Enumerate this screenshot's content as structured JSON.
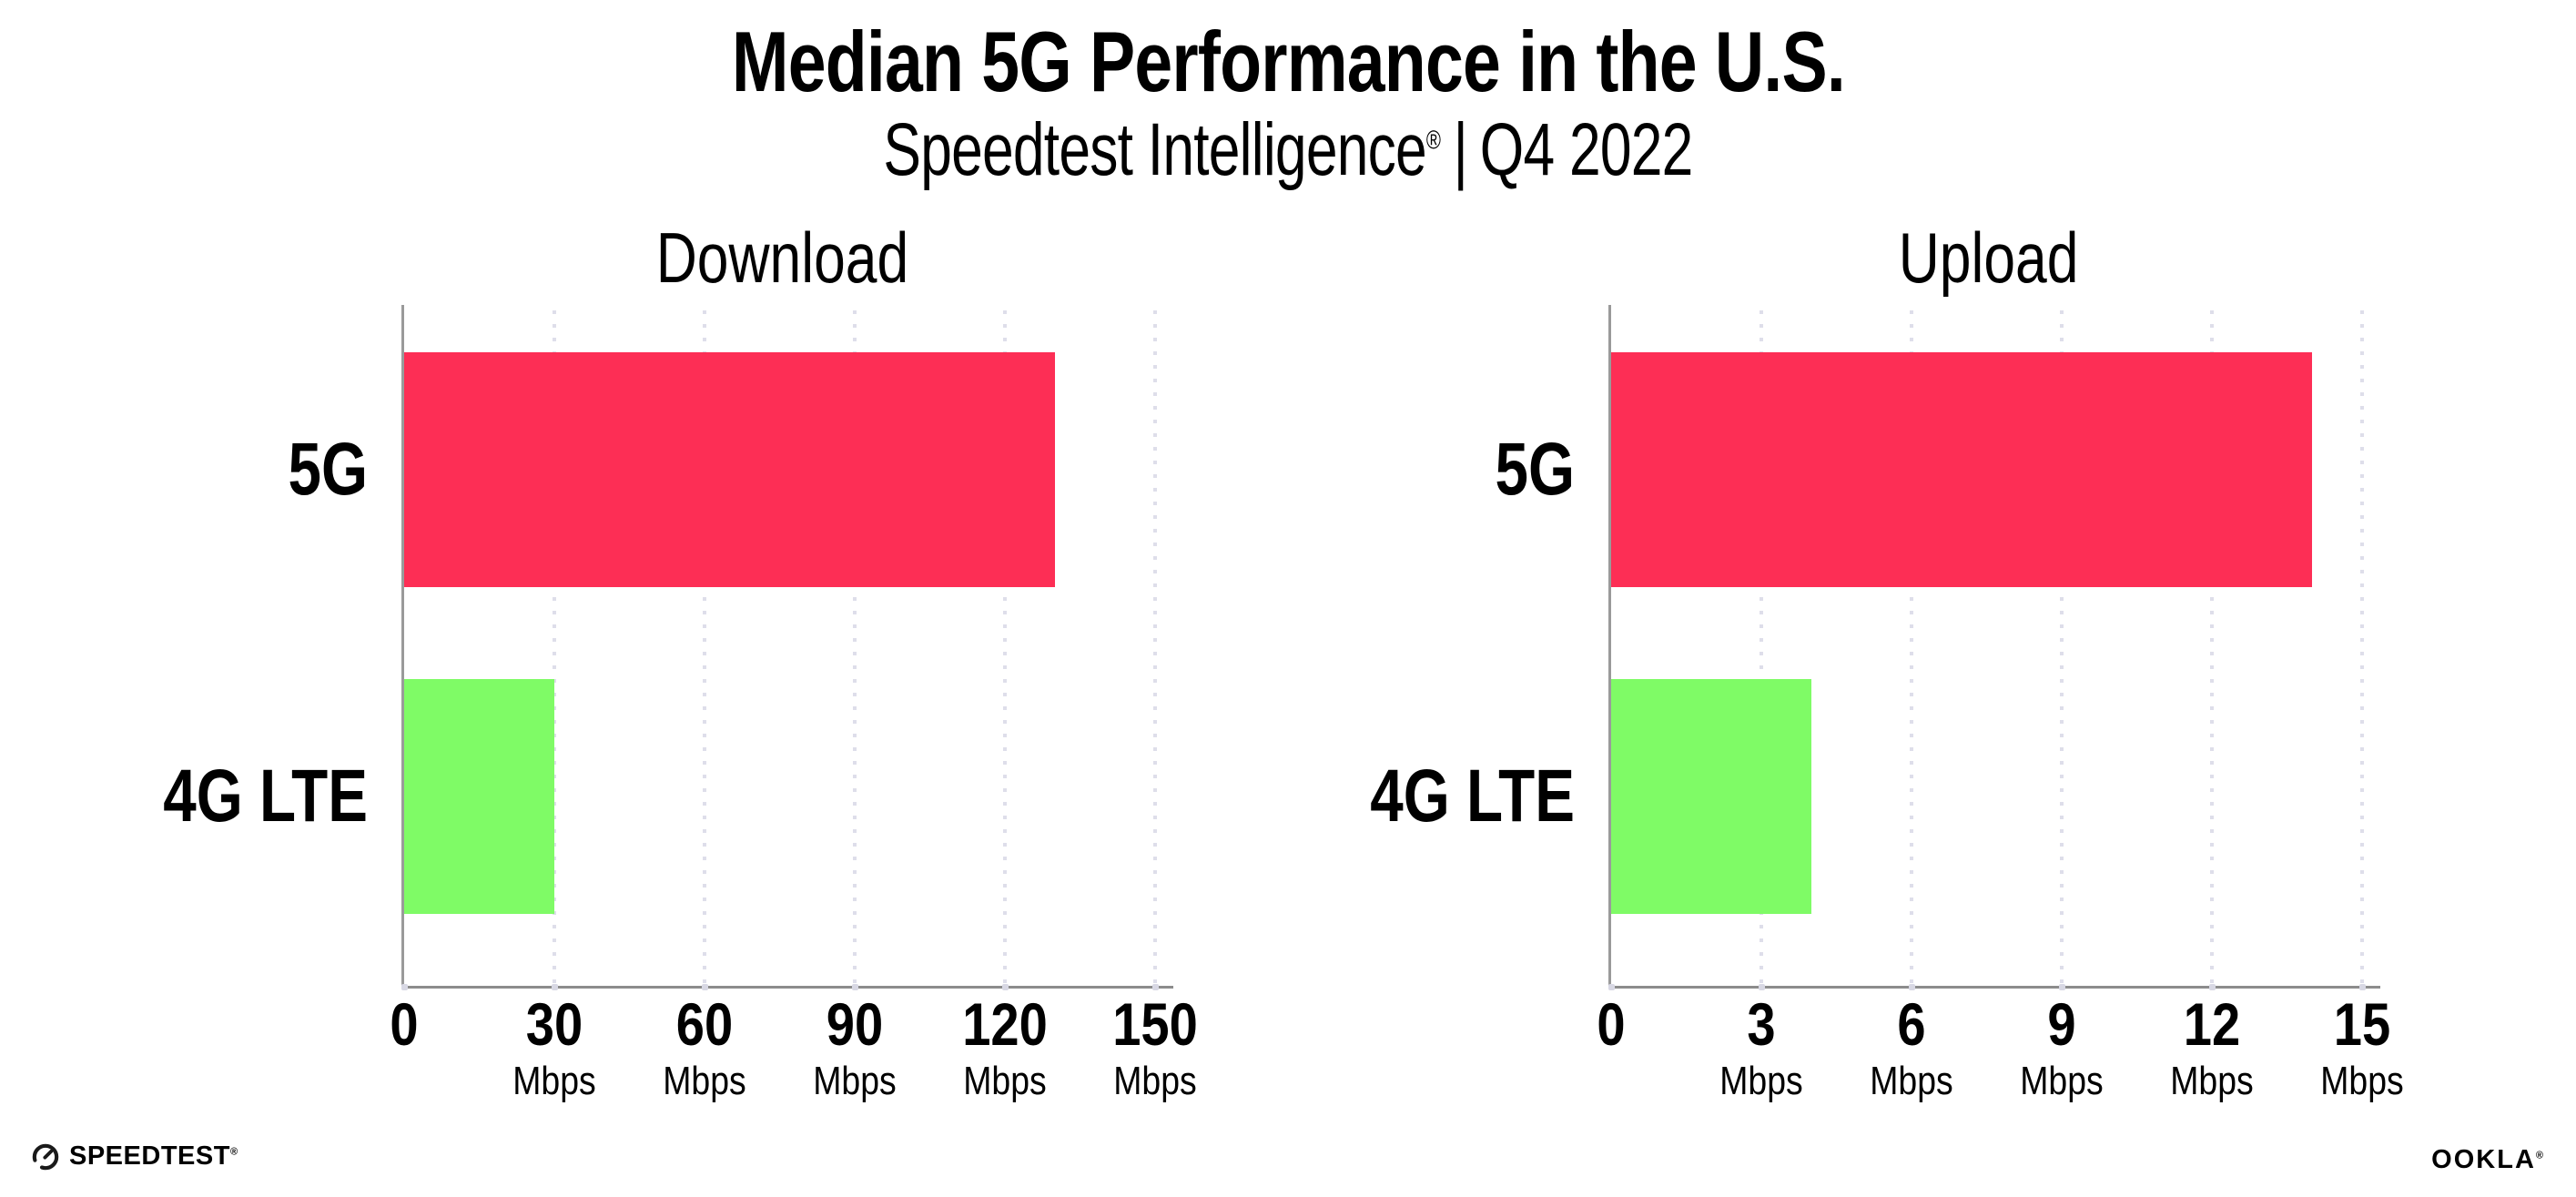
{
  "header": {
    "title": "Median 5G Performance in the U.S.",
    "subtitle_brand": "Speedtest Intelligence",
    "subtitle_reg": "®",
    "subtitle_separator": "|",
    "subtitle_period": "Q4 2022"
  },
  "colors": {
    "bar_5g": "#FD2E55",
    "bar_4g_lte": "#7FFB66",
    "gridline": "#DEDEEA",
    "axis_line": "#8C8C8C",
    "text": "#000000"
  },
  "chart_data": [
    {
      "type": "bar",
      "orientation": "horizontal",
      "title": "Download",
      "categories": [
        "5G",
        "4G LTE"
      ],
      "values": [
        130,
        30
      ],
      "unit": "Mbps",
      "xlim": [
        0,
        150
      ],
      "xticks": [
        0,
        30,
        60,
        90,
        120,
        150
      ],
      "bar_colors": [
        "#FD2E55",
        "#7FFB66"
      ],
      "grid": "vertical-dotted",
      "legend": "none"
    },
    {
      "type": "bar",
      "orientation": "horizontal",
      "title": "Upload",
      "categories": [
        "5G",
        "4G LTE"
      ],
      "values": [
        14,
        4
      ],
      "unit": "Mbps",
      "xlim": [
        0,
        15
      ],
      "xticks": [
        0,
        3,
        6,
        9,
        12,
        15
      ],
      "bar_colors": [
        "#FD2E55",
        "#7FFB66"
      ],
      "grid": "vertical-dotted",
      "legend": "none"
    }
  ],
  "footer": {
    "speedtest_logo_text": "SPEEDTEST",
    "speedtest_reg": "®",
    "ookla_logo_text": "OOKLA",
    "ookla_reg": "®"
  }
}
